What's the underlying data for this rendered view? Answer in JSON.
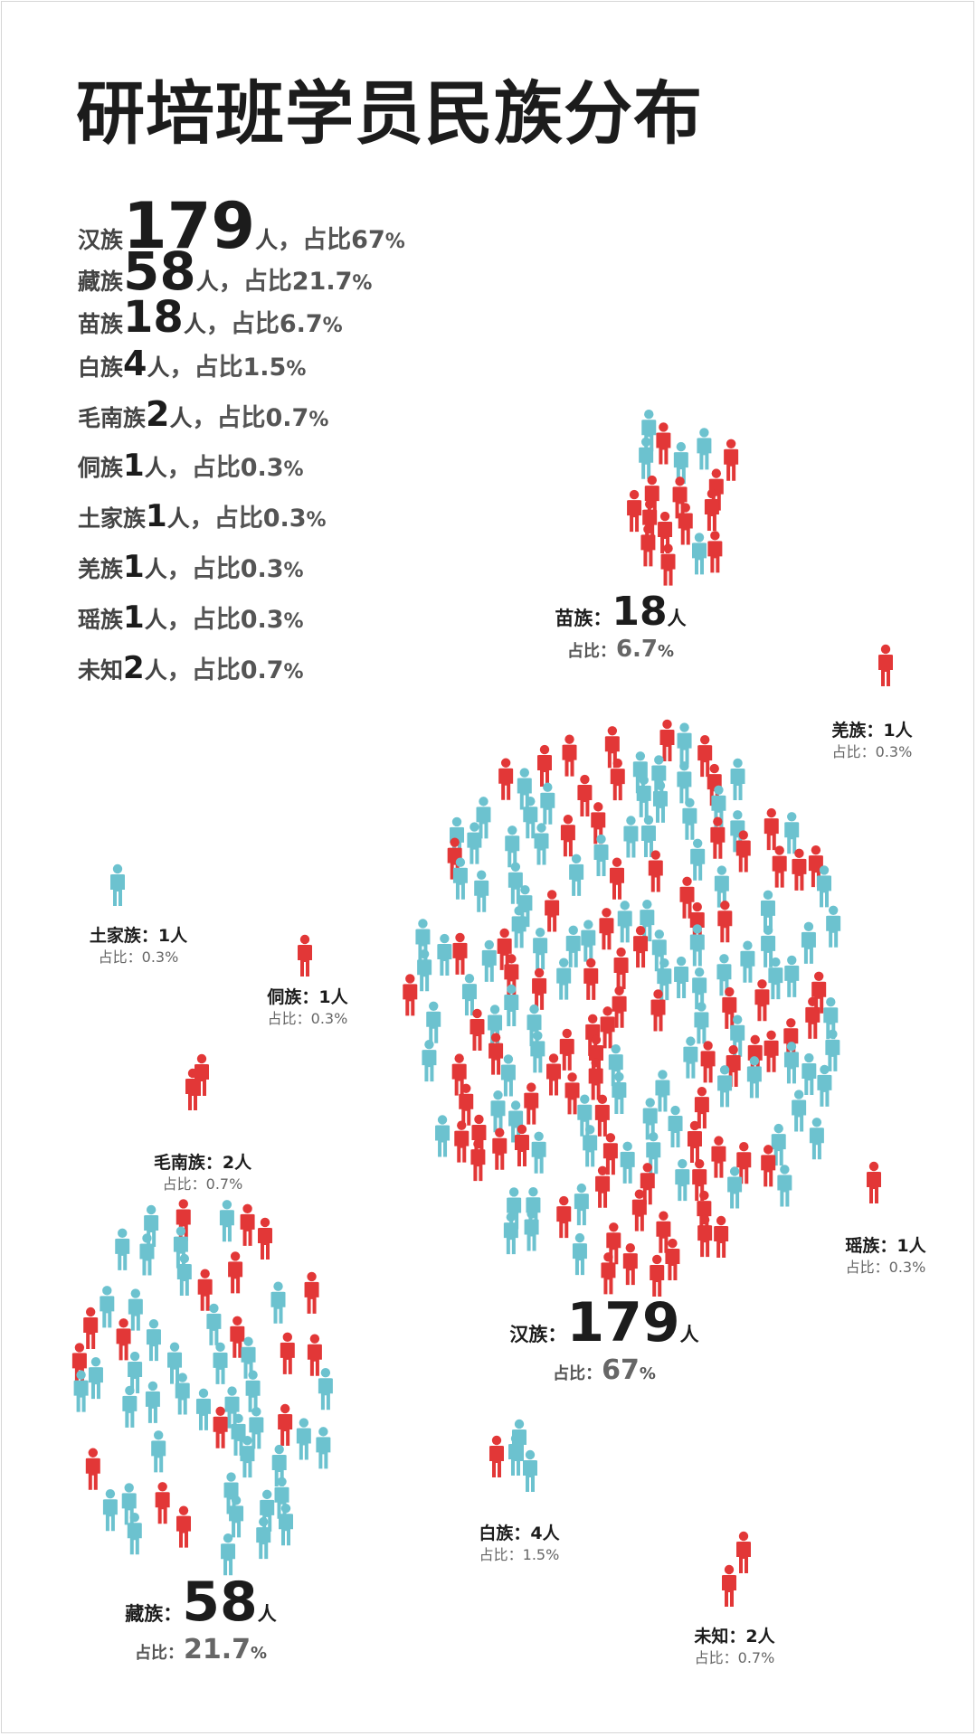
{
  "title": "研培班学员民族分布",
  "colors": {
    "blue": "#6cc2cf",
    "red": "#e23737",
    "text": "#1c1c1c"
  },
  "summary": [
    {
      "name": "汉族",
      "count": "179",
      "unit": "人",
      "pct_prefix": "，占比",
      "pct": "67",
      "pct_sym": "%"
    },
    {
      "name": "藏族",
      "count": "58",
      "unit": "人",
      "pct_prefix": "，占比",
      "pct": "21.7",
      "pct_sym": "%"
    },
    {
      "name": "苗族",
      "count": "18",
      "unit": "人",
      "pct_prefix": "，占比",
      "pct": "6.7",
      "pct_sym": "%"
    },
    {
      "name": "白族",
      "count": "4",
      "unit": "人",
      "pct_prefix": "，占比",
      "pct": "1.5",
      "pct_sym": "%"
    },
    {
      "name": "毛南族",
      "count": "2",
      "unit": "人",
      "pct_prefix": "，占比",
      "pct": "0.7",
      "pct_sym": "%"
    },
    {
      "name": "侗族",
      "count": "1",
      "unit": "人",
      "pct_prefix": "，占比",
      "pct": "0.3",
      "pct_sym": "%"
    },
    {
      "name": "土家族",
      "count": "1",
      "unit": "人",
      "pct_prefix": "，占比",
      "pct": "0.3",
      "pct_sym": "%"
    },
    {
      "name": "羌族",
      "count": "1",
      "unit": "人",
      "pct_prefix": "，占比",
      "pct": "0.3",
      "pct_sym": "%"
    },
    {
      "name": "瑶族",
      "count": "1",
      "unit": "人",
      "pct_prefix": "，占比",
      "pct": "0.3",
      "pct_sym": "%"
    },
    {
      "name": "未知",
      "count": "2",
      "unit": "人",
      "pct_prefix": "，占比",
      "pct": "0.7",
      "pct_sym": "%"
    }
  ],
  "labels": {
    "han": {
      "name": "汉族：",
      "count": "179",
      "unit": "人",
      "pct_label": "占比：",
      "pct": "67",
      "pct_sym": "%"
    },
    "zang": {
      "name": "藏族：",
      "count": "58",
      "unit": "人",
      "pct_label": "占比：",
      "pct": "21.7",
      "pct_sym": "%"
    },
    "miao": {
      "name": "苗族：",
      "count": "18",
      "unit": "人",
      "pct_label": "占比：",
      "pct": "6.7",
      "pct_sym": "%"
    },
    "bai": {
      "line1": "白族：4人",
      "line2": "占比：1.5%"
    },
    "maonan": {
      "line1": "毛南族：2人",
      "line2": "占比：0.7%"
    },
    "dong": {
      "line1": "侗族：1人",
      "line2": "占比：0.3%"
    },
    "tujia": {
      "line1": "土家族：1人",
      "line2": "占比：0.3%"
    },
    "qiang": {
      "line1": "羌族：1人",
      "line2": "占比：0.3%"
    },
    "yao": {
      "line1": "瑶族：1人",
      "line2": "占比：0.3%"
    },
    "unknown": {
      "line1": "未知：2人",
      "line2": "占比：0.7%"
    }
  },
  "chart_data": {
    "type": "pictogram",
    "title": "研培班学员民族分布",
    "unit": "人",
    "categories": [
      "汉族",
      "藏族",
      "苗族",
      "白族",
      "毛南族",
      "侗族",
      "土家族",
      "羌族",
      "瑶族",
      "未知"
    ],
    "values": [
      179,
      58,
      18,
      4,
      2,
      1,
      1,
      1,
      1,
      2
    ],
    "percentages": [
      67,
      21.7,
      6.7,
      1.5,
      0.7,
      0.3,
      0.3,
      0.3,
      0.3,
      0.7
    ],
    "percent_unit": "%",
    "icon": "person-icon"
  }
}
